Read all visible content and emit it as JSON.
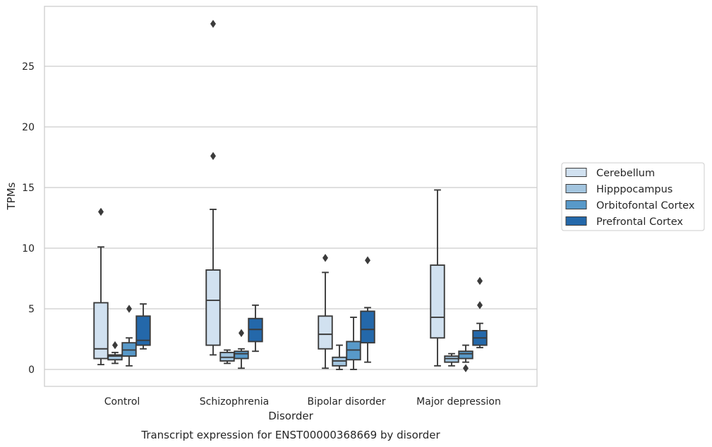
{
  "chart_data": {
    "type": "box",
    "caption": "Transcript expression for ENST00000368669 by disorder",
    "xlabel": "Disorder",
    "ylabel": "TPMs",
    "ylim": [
      -1.4,
      30.0
    ],
    "yticks": [
      0,
      5,
      10,
      15,
      20,
      25
    ],
    "grid": "horizontal",
    "legend_position": "right",
    "categories": [
      "Control",
      "Schizophrenia",
      "Bipolar disorder",
      "Major depression"
    ],
    "series": [
      {
        "name": "Cerebellum",
        "color": "#d1e1f0",
        "boxes": [
          {
            "whislo": 0.4,
            "q1": 0.9,
            "med": 1.7,
            "q3": 5.5,
            "whishi": 10.1,
            "fliers": [
              13.0
            ]
          },
          {
            "whislo": 1.2,
            "q1": 2.0,
            "med": 5.7,
            "q3": 8.2,
            "whishi": 13.2,
            "fliers": [
              17.6,
              28.5
            ]
          },
          {
            "whislo": 0.1,
            "q1": 1.7,
            "med": 2.9,
            "q3": 4.4,
            "whishi": 8.0,
            "fliers": [
              9.2
            ]
          },
          {
            "whislo": 0.3,
            "q1": 2.6,
            "med": 4.3,
            "q3": 8.6,
            "whishi": 14.8,
            "fliers": []
          }
        ]
      },
      {
        "name": "Hipppocampus",
        "color": "#a3c5df",
        "boxes": [
          {
            "whislo": 0.5,
            "q1": 0.8,
            "med": 1.1,
            "q3": 1.2,
            "whishi": 1.4,
            "fliers": [
              2.0
            ]
          },
          {
            "whislo": 0.5,
            "q1": 0.7,
            "med": 1.0,
            "q3": 1.4,
            "whishi": 1.6,
            "fliers": []
          },
          {
            "whislo": 0.0,
            "q1": 0.3,
            "med": 0.7,
            "q3": 1.0,
            "whishi": 2.0,
            "fliers": []
          },
          {
            "whislo": 0.3,
            "q1": 0.6,
            "med": 0.9,
            "q3": 1.1,
            "whishi": 1.3,
            "fliers": []
          }
        ]
      },
      {
        "name": "Orbitofontal Cortex",
        "color": "#5899c9",
        "boxes": [
          {
            "whislo": 0.3,
            "q1": 1.1,
            "med": 1.6,
            "q3": 2.2,
            "whishi": 2.6,
            "fliers": [
              5.0
            ]
          },
          {
            "whislo": 0.1,
            "q1": 0.9,
            "med": 1.3,
            "q3": 1.5,
            "whishi": 1.7,
            "fliers": [
              3.0
            ]
          },
          {
            "whislo": 0.0,
            "q1": 0.8,
            "med": 1.6,
            "q3": 2.3,
            "whishi": 4.3,
            "fliers": []
          },
          {
            "whislo": 0.6,
            "q1": 0.9,
            "med": 1.3,
            "q3": 1.5,
            "whishi": 2.0,
            "fliers": [
              0.1
            ]
          }
        ]
      },
      {
        "name": "Prefrontal Cortex",
        "color": "#2468aa",
        "boxes": [
          {
            "whislo": 1.7,
            "q1": 2.0,
            "med": 2.4,
            "q3": 4.4,
            "whishi": 5.4,
            "fliers": []
          },
          {
            "whislo": 1.5,
            "q1": 2.3,
            "med": 3.3,
            "q3": 4.2,
            "whishi": 5.3,
            "fliers": []
          },
          {
            "whislo": 0.6,
            "q1": 2.2,
            "med": 3.3,
            "q3": 4.8,
            "whishi": 5.1,
            "fliers": [
              9.0
            ]
          },
          {
            "whislo": 1.8,
            "q1": 2.0,
            "med": 2.6,
            "q3": 3.2,
            "whishi": 3.8,
            "fliers": [
              5.3,
              7.3
            ]
          }
        ]
      }
    ],
    "colors": {
      "edge": "#3b3b3b",
      "grid": "#cccccc",
      "frame": "#cccccc",
      "text": "#262626"
    }
  }
}
